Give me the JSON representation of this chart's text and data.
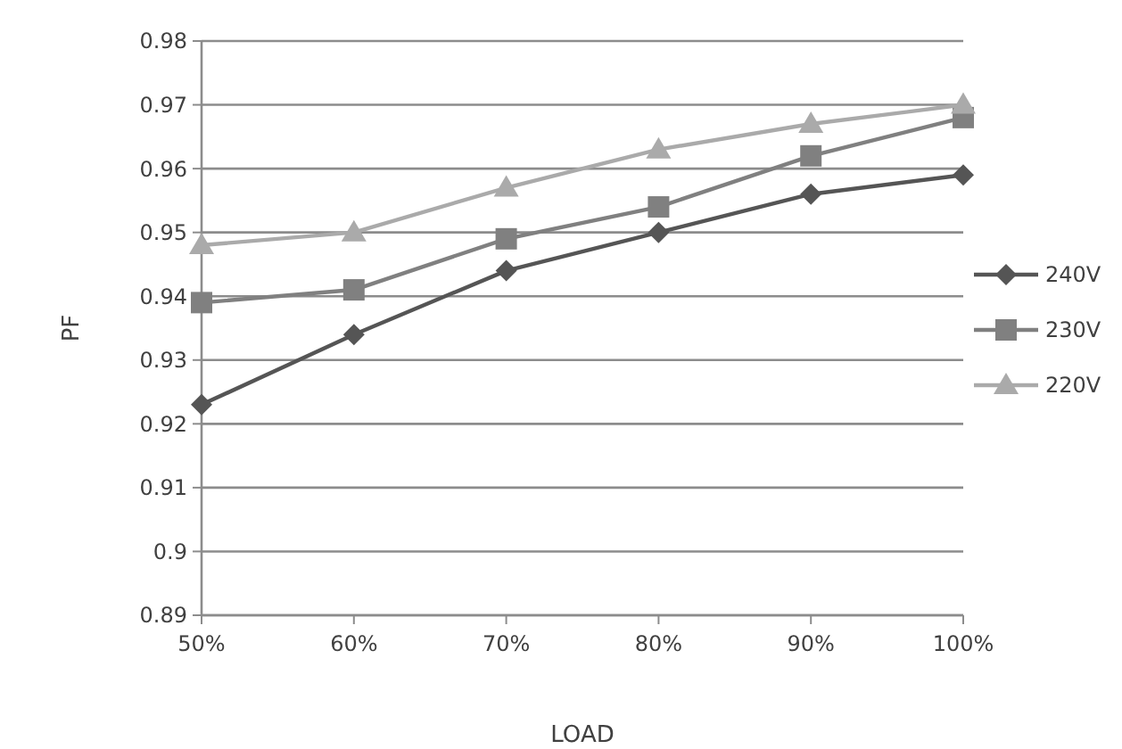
{
  "chart_data": {
    "type": "line",
    "xlabel": "LOAD",
    "ylabel": "PF",
    "categories": [
      "50%",
      "60%",
      "70%",
      "80%",
      "90%",
      "100%"
    ],
    "series": [
      {
        "name": "240V",
        "color": "#555555",
        "marker": "diamond",
        "values": [
          0.923,
          0.934,
          0.944,
          0.95,
          0.956,
          0.959
        ]
      },
      {
        "name": "230V",
        "color": "#808080",
        "marker": "square",
        "values": [
          0.939,
          0.941,
          0.949,
          0.954,
          0.962,
          0.968
        ]
      },
      {
        "name": "220V",
        "color": "#aaaaaa",
        "marker": "triangle",
        "values": [
          0.948,
          0.95,
          0.957,
          0.963,
          0.967,
          0.97
        ]
      }
    ],
    "ylim": [
      0.89,
      0.98
    ],
    "yticks": [
      0.89,
      0.9,
      0.91,
      0.92,
      0.93,
      0.94,
      0.95,
      0.96,
      0.97,
      0.98
    ],
    "grid": "y",
    "legend": "right"
  }
}
